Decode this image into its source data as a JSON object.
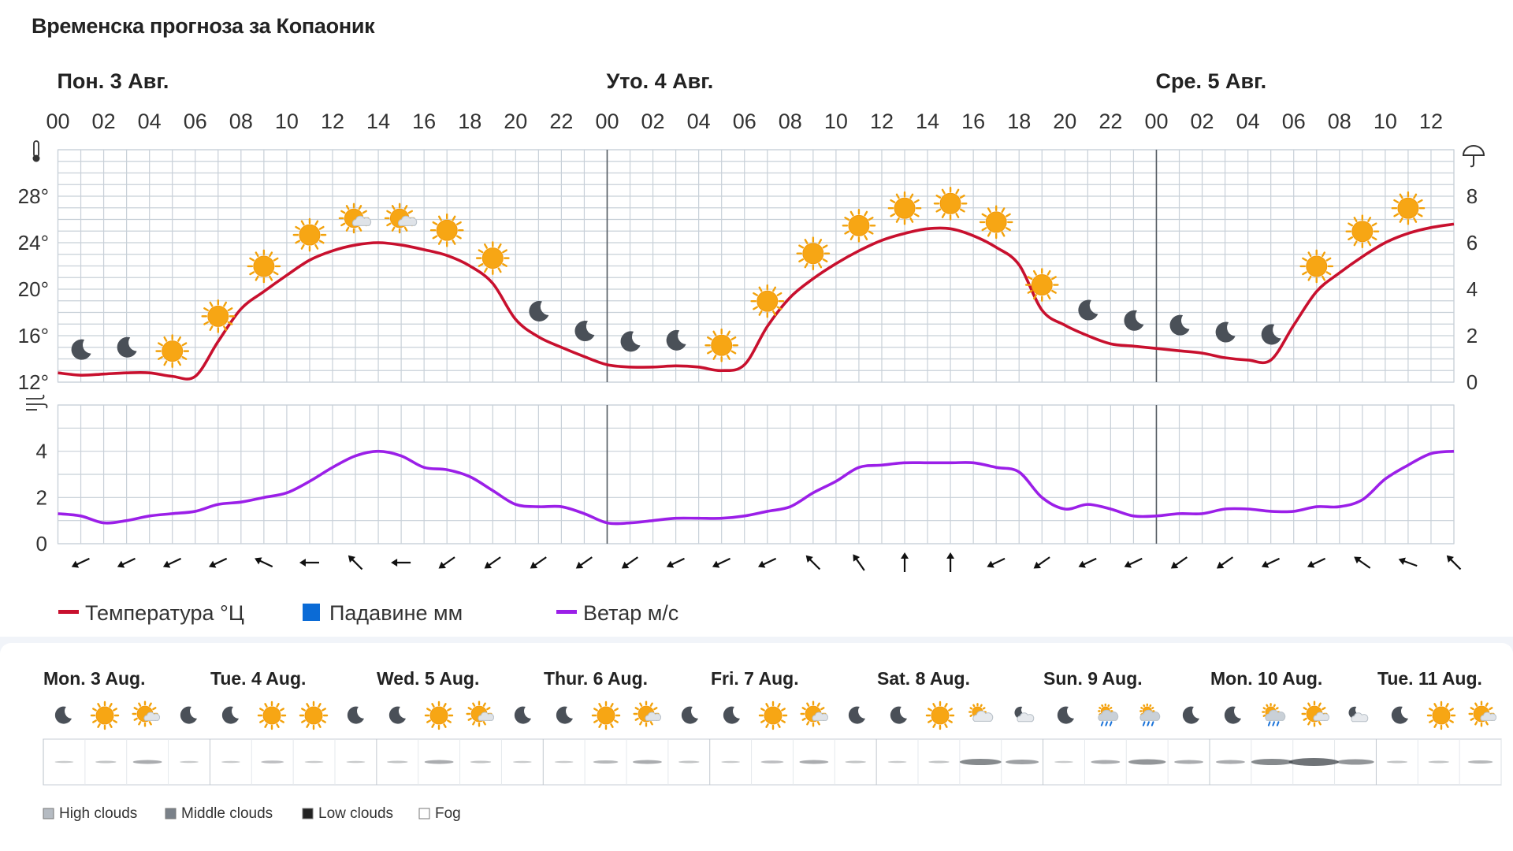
{
  "page": {
    "title": "Временска прогноза за Копаоник"
  },
  "chart_data": [
    {
      "type": "line",
      "title": "Временска прогноза за Копаоник",
      "day_labels": [
        "Пон. 3 Авг.",
        "Уто. 4 Авг.",
        "Сре. 5 Авг."
      ],
      "hour_labels": [
        "00",
        "02",
        "04",
        "06",
        "08",
        "10",
        "12",
        "14",
        "16",
        "18",
        "20",
        "22",
        "00",
        "02",
        "04",
        "06",
        "08",
        "10",
        "12",
        "14",
        "16",
        "18",
        "20",
        "22",
        "00",
        "02",
        "04",
        "06",
        "08",
        "10",
        "12"
      ],
      "y_left": {
        "ticks": [
          "12°",
          "16°",
          "20°",
          "24°",
          "28°"
        ],
        "range": [
          12,
          32
        ]
      },
      "y_right": {
        "ticks": [
          "0",
          "2",
          "4",
          "6",
          "8"
        ],
        "range": [
          0,
          10
        ]
      },
      "wind_axis": {
        "ticks": [
          "0",
          "2",
          "4"
        ],
        "range": [
          0,
          6
        ]
      },
      "x_hours": [
        0,
        1,
        2,
        3,
        4,
        5,
        6,
        7,
        8,
        9,
        10,
        11,
        12,
        13,
        14,
        15,
        16,
        17,
        18,
        19,
        20,
        21,
        22,
        23,
        24,
        25,
        26,
        27,
        28,
        29,
        30,
        31,
        32,
        33,
        34,
        35,
        36,
        37,
        38,
        39,
        40,
        41,
        42,
        43,
        44,
        45,
        46,
        47,
        48,
        49,
        50,
        51,
        52,
        53,
        54,
        55,
        56,
        57,
        58,
        59,
        60,
        61
      ],
      "series": [
        {
          "name": "Температура °Ц",
          "unit": "°C",
          "color": "#c8102e",
          "values": [
            12.8,
            12.6,
            12.7,
            12.8,
            12.8,
            12.5,
            12.5,
            15.5,
            18.3,
            19.8,
            21.2,
            22.5,
            23.3,
            23.8,
            24.0,
            23.8,
            23.4,
            22.9,
            22.0,
            20.5,
            17.4,
            15.9,
            15.0,
            14.2,
            13.5,
            13.3,
            13.3,
            13.4,
            13.3,
            13.0,
            13.5,
            16.8,
            19.3,
            20.9,
            22.2,
            23.3,
            24.2,
            24.8,
            25.2,
            25.2,
            24.6,
            23.6,
            22.1,
            18.2,
            16.9,
            16.0,
            15.3,
            15.1,
            14.9,
            14.7,
            14.5,
            14.1,
            13.9,
            13.9,
            16.9,
            19.8,
            21.4,
            22.8,
            24.0,
            24.8,
            25.3,
            25.6
          ]
        },
        {
          "name": "Падавине мм",
          "unit": "mm",
          "color": "#0b6bd6",
          "values": []
        },
        {
          "name": "Ветар м/с",
          "unit": "m/s",
          "color": "#9b1fe8",
          "values": [
            1.3,
            1.2,
            0.9,
            1.0,
            1.2,
            1.3,
            1.4,
            1.7,
            1.8,
            2.0,
            2.2,
            2.7,
            3.3,
            3.8,
            4.0,
            3.8,
            3.3,
            3.2,
            2.9,
            2.3,
            1.7,
            1.6,
            1.6,
            1.3,
            0.9,
            0.9,
            1.0,
            1.1,
            1.1,
            1.1,
            1.2,
            1.4,
            1.6,
            2.2,
            2.7,
            3.3,
            3.4,
            3.5,
            3.5,
            3.5,
            3.5,
            3.3,
            3.1,
            2.0,
            1.5,
            1.7,
            1.5,
            1.2,
            1.2,
            1.3,
            1.3,
            1.5,
            1.5,
            1.4,
            1.4,
            1.6,
            1.6,
            1.9,
            2.8,
            3.4,
            3.9,
            4.0
          ]
        }
      ],
      "weather_icons": [
        "moon",
        "moon",
        "sun",
        "sun",
        "sun",
        "sun",
        "sun-cloud",
        "sun-cloud",
        "sun",
        "sun",
        "moon",
        "moon",
        "moon",
        "moon",
        "sun",
        "sun",
        "sun",
        "sun",
        "sun",
        "sun",
        "sun",
        "sun",
        "moon",
        "moon",
        "moon",
        "moon",
        "moon",
        "sun",
        "sun",
        "sun"
      ],
      "wind_dir_deg": [
        245,
        245,
        245,
        245,
        295,
        270,
        315,
        270,
        235,
        235,
        235,
        235,
        235,
        245,
        245,
        245,
        315,
        325,
        0,
        0,
        245,
        235,
        245,
        245,
        235,
        235,
        245,
        245,
        305,
        290,
        315
      ],
      "legend": [
        "Температура °Ц",
        "Падавине мм",
        "Ветар м/с"
      ],
      "grid": true
    },
    {
      "type": "table",
      "days": [
        "Mon. 3 Aug.",
        "Tue. 4 Aug.",
        "Wed. 5 Aug.",
        "Thur. 6 Aug.",
        "Fri. 7 Aug.",
        "Sat. 8 Aug.",
        "Sun. 9 Aug.",
        "Mon. 10 Aug.",
        "Tue. 11 Aug."
      ],
      "icons": [
        "moon",
        "sun",
        "sun-cloud",
        "moon",
        "moon",
        "sun",
        "sun",
        "moon",
        "moon",
        "sun",
        "sun-cloud",
        "moon",
        "moon",
        "sun",
        "sun-cloud",
        "moon",
        "moon",
        "sun",
        "sun-cloud",
        "moon",
        "moon",
        "sun",
        "cloud-sun",
        "moon-cloud",
        "moon",
        "rain",
        "rain",
        "moon",
        "moon",
        "sun-cloud-rain",
        "sun-cloud",
        "moon-cloud",
        "moon",
        "sun",
        "sun-cloud"
      ],
      "cloud_cover": [
        0.05,
        0.1,
        0.3,
        0.05,
        0.05,
        0.15,
        0.05,
        0.05,
        0.1,
        0.3,
        0.1,
        0.05,
        0.05,
        0.2,
        0.3,
        0.1,
        0.05,
        0.15,
        0.3,
        0.1,
        0.05,
        0.1,
        0.6,
        0.4,
        0.05,
        0.3,
        0.5,
        0.3,
        0.3,
        0.6,
        0.8,
        0.5,
        0.1,
        0.1,
        0.2
      ],
      "legend": [
        "High clouds",
        "Middle clouds",
        "Low clouds",
        "Fog"
      ]
    }
  ]
}
